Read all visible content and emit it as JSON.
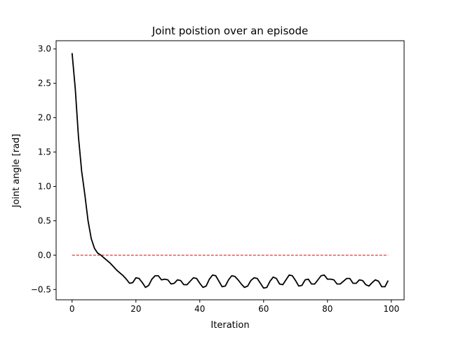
{
  "chart_data": {
    "type": "line",
    "title": "Joint poistion over an episode",
    "xlabel": "Iteration",
    "ylabel": "Joint angle [rad]",
    "xlim": [
      -5,
      104
    ],
    "ylim": [
      -0.65,
      3.12
    ],
    "x_ticks": [
      0,
      20,
      40,
      60,
      80,
      100
    ],
    "x_tick_labels": [
      "0",
      "20",
      "40",
      "60",
      "80",
      "100"
    ],
    "y_ticks": [
      -0.5,
      0.0,
      0.5,
      1.0,
      1.5,
      2.0,
      2.5,
      3.0
    ],
    "y_tick_labels": [
      "−0.5",
      "0.0",
      "0.5",
      "1.0",
      "1.5",
      "2.0",
      "2.5",
      "3.0"
    ],
    "grid": false,
    "series": [
      {
        "style": "solid",
        "color": "#000000",
        "x": [
          0,
          1,
          2,
          3,
          4,
          5,
          6,
          7,
          8,
          9,
          10,
          11,
          12,
          13,
          14,
          15,
          16,
          17,
          18,
          19,
          20,
          21,
          22,
          23,
          24,
          25,
          26,
          27,
          28,
          29,
          30,
          31,
          32,
          33,
          34,
          35,
          36,
          37,
          38,
          39,
          40,
          41,
          42,
          43,
          44,
          45,
          46,
          47,
          48,
          49,
          50,
          51,
          52,
          53,
          54,
          55,
          56,
          57,
          58,
          59,
          60,
          61,
          62,
          63,
          64,
          65,
          66,
          67,
          68,
          69,
          70,
          71,
          72,
          73,
          74,
          75,
          76,
          77,
          78,
          79,
          80,
          81,
          82,
          83,
          84,
          85,
          86,
          87,
          88,
          89,
          90,
          91,
          92,
          93,
          94,
          95,
          96,
          97,
          98,
          99
        ],
        "y": [
          2.94,
          2.42,
          1.72,
          1.22,
          0.88,
          0.5,
          0.24,
          0.1,
          0.03,
          0.0,
          -0.04,
          -0.08,
          -0.12,
          -0.17,
          -0.22,
          -0.26,
          -0.3,
          -0.35,
          -0.41,
          -0.4,
          -0.33,
          -0.34,
          -0.4,
          -0.47,
          -0.44,
          -0.35,
          -0.3,
          -0.3,
          -0.36,
          -0.35,
          -0.36,
          -0.42,
          -0.41,
          -0.36,
          -0.37,
          -0.43,
          -0.43,
          -0.38,
          -0.33,
          -0.34,
          -0.41,
          -0.47,
          -0.45,
          -0.35,
          -0.29,
          -0.3,
          -0.38,
          -0.46,
          -0.45,
          -0.36,
          -0.3,
          -0.31,
          -0.36,
          -0.42,
          -0.47,
          -0.45,
          -0.37,
          -0.33,
          -0.34,
          -0.41,
          -0.48,
          -0.47,
          -0.38,
          -0.32,
          -0.34,
          -0.42,
          -0.43,
          -0.36,
          -0.29,
          -0.3,
          -0.37,
          -0.45,
          -0.44,
          -0.36,
          -0.35,
          -0.42,
          -0.42,
          -0.36,
          -0.3,
          -0.29,
          -0.35,
          -0.35,
          -0.36,
          -0.42,
          -0.42,
          -0.38,
          -0.34,
          -0.34,
          -0.41,
          -0.41,
          -0.36,
          -0.37,
          -0.43,
          -0.45,
          -0.4,
          -0.36,
          -0.38,
          -0.46,
          -0.46,
          -0.37
        ]
      },
      {
        "style": "dashed",
        "color": "#ff0000",
        "x": [
          0,
          99
        ],
        "y": [
          0,
          0
        ]
      }
    ]
  }
}
